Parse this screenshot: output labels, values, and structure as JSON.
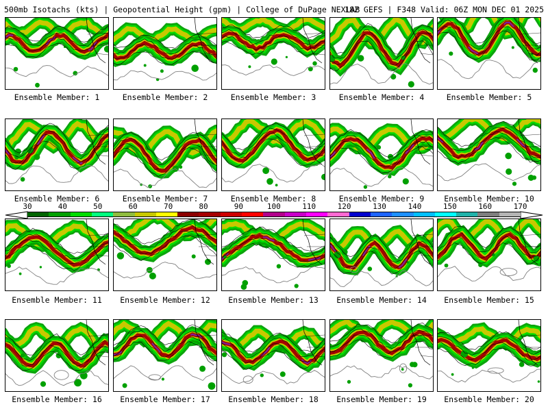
{
  "header": {
    "left": "500mb Isotachs (kts) | Geopotential Height (gpm) | College of DuPage NEXLAB",
    "right": "18Z GEFS | F348 Valid: 06Z MON DEC 01 2025"
  },
  "legend": {
    "ticks": [
      "30",
      "40",
      "50",
      "60",
      "70",
      "80",
      "90",
      "100",
      "110",
      "120",
      "130",
      "140",
      "150",
      "160",
      "170"
    ],
    "colors": [
      "#006400",
      "#00a000",
      "#00dc00",
      "#00ff7f",
      "#8fbc3f",
      "#c8c800",
      "#ffff00",
      "#8b0000",
      "#a50000",
      "#cd0000",
      "#ff0000",
      "#b2008b",
      "#c800c8",
      "#ff00ff",
      "#ff69d2",
      "#0000cd",
      "#1e64ff",
      "#1e90ff",
      "#00bfff",
      "#00ffff",
      "#20b2aa",
      "#7f7f7f",
      "#b4b4b4"
    ]
  },
  "members": [
    {
      "label": "Ensemble Member: 1"
    },
    {
      "label": "Ensemble Member: 2"
    },
    {
      "label": "Ensemble Member: 3"
    },
    {
      "label": "Ensemble Member: 4"
    },
    {
      "label": "Ensemble Member: 5"
    },
    {
      "label": "Ensemble Member: 6"
    },
    {
      "label": "Ensemble Member: 7"
    },
    {
      "label": "Ensemble Member: 8"
    },
    {
      "label": "Ensemble Member: 9"
    },
    {
      "label": "Ensemble Member: 10"
    },
    {
      "label": "Ensemble Member: 11"
    },
    {
      "label": "Ensemble Member: 12"
    },
    {
      "label": "Ensemble Member: 13"
    },
    {
      "label": "Ensemble Member: 14"
    },
    {
      "label": "Ensemble Member: 15"
    },
    {
      "label": "Ensemble Member: 16"
    },
    {
      "label": "Ensemble Member: 17"
    },
    {
      "label": "Ensemble Member: 18"
    },
    {
      "label": "Ensemble Member: 19"
    },
    {
      "label": "Ensemble Member: 20"
    }
  ]
}
